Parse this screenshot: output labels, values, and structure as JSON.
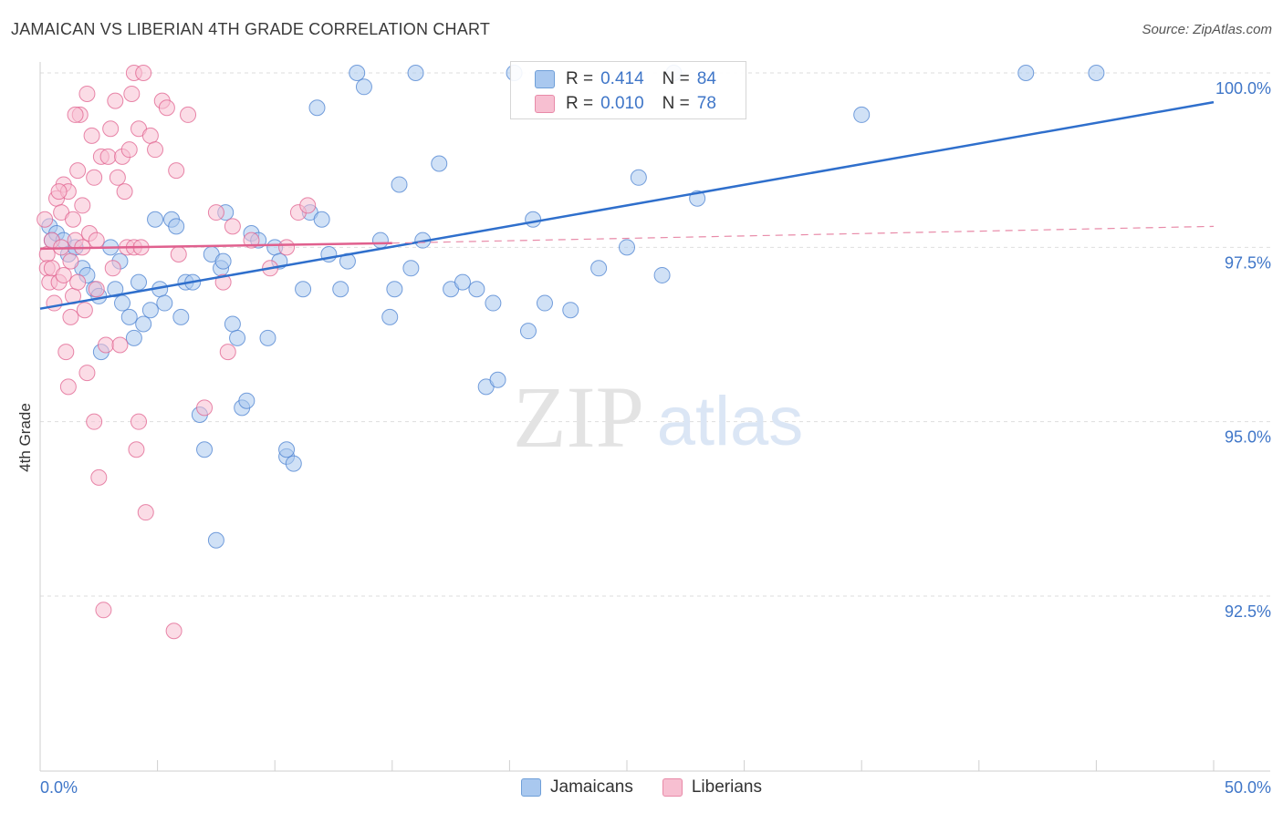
{
  "title": "JAMAICAN VS LIBERIAN 4TH GRADE CORRELATION CHART",
  "source": "Source: ZipAtlas.com",
  "watermark": {
    "zip": "ZIP",
    "atlas": "atlas"
  },
  "legend": {
    "rows": [
      {
        "r_label": "R =",
        "r_value": "0.414",
        "n_label": "N =",
        "n_value": "84",
        "color": "#a9c8ef",
        "border": "#6f9fd8"
      },
      {
        "r_label": "R =",
        "r_value": "0.010",
        "n_label": "N =",
        "n_value": "78",
        "color": "#f7bfd1",
        "border": "#e88aa8"
      }
    ]
  },
  "chart_data": {
    "type": "scatter",
    "title": "JAMAICAN VS LIBERIAN 4TH GRADE CORRELATION CHART",
    "xlabel": "",
    "ylabel": "4th Grade",
    "xlim": [
      0,
      50
    ],
    "ylim": [
      90.8,
      100.4
    ],
    "x_tick_labels": [
      "0.0%",
      "50.0%"
    ],
    "y_ticks": [
      92.5,
      95.0,
      97.5,
      100.0
    ],
    "y_tick_labels": [
      "92.5%",
      "95.0%",
      "97.5%",
      "100.0%"
    ],
    "grid": true,
    "legend_position": "top-center",
    "series": [
      {
        "name": "Jamaicans",
        "color": "#4a80d0",
        "fill": "#a9c8ef",
        "trend": {
          "x": [
            0,
            50
          ],
          "y": [
            96.62,
            99.58
          ]
        },
        "points": [
          [
            0.4,
            97.8
          ],
          [
            0.5,
            97.6
          ],
          [
            0.7,
            97.7
          ],
          [
            1.0,
            97.6
          ],
          [
            1.2,
            97.4
          ],
          [
            1.5,
            97.5
          ],
          [
            1.8,
            97.2
          ],
          [
            2.0,
            97.1
          ],
          [
            2.3,
            96.9
          ],
          [
            2.5,
            96.8
          ],
          [
            2.6,
            96.0
          ],
          [
            3.0,
            97.5
          ],
          [
            3.2,
            96.9
          ],
          [
            3.4,
            97.3
          ],
          [
            3.5,
            96.7
          ],
          [
            3.8,
            96.5
          ],
          [
            4.0,
            96.2
          ],
          [
            4.2,
            97.0
          ],
          [
            4.4,
            96.4
          ],
          [
            4.7,
            96.6
          ],
          [
            4.9,
            97.9
          ],
          [
            5.1,
            96.9
          ],
          [
            5.3,
            96.7
          ],
          [
            5.6,
            97.9
          ],
          [
            5.8,
            97.8
          ],
          [
            6.0,
            96.5
          ],
          [
            6.2,
            97.0
          ],
          [
            6.5,
            97.0
          ],
          [
            6.8,
            95.1
          ],
          [
            7.0,
            94.6
          ],
          [
            7.3,
            97.4
          ],
          [
            7.5,
            93.3
          ],
          [
            7.7,
            97.2
          ],
          [
            7.9,
            98.0
          ],
          [
            8.2,
            96.4
          ],
          [
            8.4,
            96.2
          ],
          [
            8.6,
            95.2
          ],
          [
            8.8,
            95.3
          ],
          [
            9.0,
            97.7
          ],
          [
            9.3,
            97.6
          ],
          [
            9.7,
            96.2
          ],
          [
            10.0,
            97.5
          ],
          [
            10.2,
            97.3
          ],
          [
            10.5,
            94.5
          ],
          [
            10.8,
            94.4
          ],
          [
            11.2,
            96.9
          ],
          [
            11.5,
            98.0
          ],
          [
            11.8,
            99.5
          ],
          [
            12.0,
            97.9
          ],
          [
            12.3,
            97.4
          ],
          [
            12.8,
            96.9
          ],
          [
            13.1,
            97.3
          ],
          [
            13.5,
            100.0
          ],
          [
            13.8,
            99.8
          ],
          [
            14.5,
            97.6
          ],
          [
            14.9,
            96.5
          ],
          [
            15.1,
            96.9
          ],
          [
            15.3,
            98.4
          ],
          [
            15.8,
            97.2
          ],
          [
            16.3,
            97.6
          ],
          [
            17.0,
            98.7
          ],
          [
            17.5,
            96.9
          ],
          [
            18.0,
            97.0
          ],
          [
            18.6,
            96.9
          ],
          [
            19.0,
            95.5
          ],
          [
            19.3,
            96.7
          ],
          [
            19.5,
            95.6
          ],
          [
            20.2,
            100.0
          ],
          [
            20.8,
            96.3
          ],
          [
            21.0,
            97.9
          ],
          [
            21.5,
            96.7
          ],
          [
            22.6,
            96.6
          ],
          [
            23.8,
            97.2
          ],
          [
            25.0,
            97.5
          ],
          [
            25.5,
            98.5
          ],
          [
            26.5,
            97.1
          ],
          [
            27.0,
            100.0
          ],
          [
            28.0,
            98.2
          ],
          [
            35.0,
            99.4
          ],
          [
            42.0,
            100.0
          ],
          [
            45.0,
            100.0
          ],
          [
            10.5,
            94.6
          ],
          [
            16.0,
            100.0
          ],
          [
            7.8,
            97.3
          ]
        ]
      },
      {
        "name": "Liberians",
        "color": "#e0608e",
        "fill": "#f7bfd1",
        "trend": {
          "x": [
            0,
            15
          ],
          "y": [
            97.48,
            97.56
          ]
        },
        "trend_ext": {
          "x": [
            15,
            50
          ],
          "y": [
            97.56,
            97.8
          ]
        },
        "points": [
          [
            0.2,
            97.9
          ],
          [
            0.3,
            97.4
          ],
          [
            0.3,
            97.2
          ],
          [
            0.4,
            97.0
          ],
          [
            0.5,
            97.6
          ],
          [
            0.5,
            97.2
          ],
          [
            0.6,
            96.7
          ],
          [
            0.7,
            98.2
          ],
          [
            0.8,
            97.0
          ],
          [
            0.9,
            98.0
          ],
          [
            0.9,
            97.5
          ],
          [
            1.0,
            98.4
          ],
          [
            1.0,
            97.1
          ],
          [
            1.1,
            96.0
          ],
          [
            1.2,
            95.5
          ],
          [
            1.2,
            98.3
          ],
          [
            1.3,
            97.3
          ],
          [
            1.3,
            96.5
          ],
          [
            1.4,
            97.9
          ],
          [
            1.4,
            96.8
          ],
          [
            1.5,
            97.6
          ],
          [
            1.6,
            98.6
          ],
          [
            1.6,
            97.0
          ],
          [
            1.7,
            99.4
          ],
          [
            1.8,
            98.1
          ],
          [
            1.8,
            97.5
          ],
          [
            1.9,
            96.6
          ],
          [
            2.0,
            99.7
          ],
          [
            2.0,
            95.7
          ],
          [
            2.1,
            97.7
          ],
          [
            2.2,
            99.1
          ],
          [
            2.3,
            98.5
          ],
          [
            2.4,
            97.6
          ],
          [
            2.4,
            96.9
          ],
          [
            2.5,
            94.2
          ],
          [
            2.6,
            98.8
          ],
          [
            2.7,
            92.3
          ],
          [
            2.8,
            96.1
          ],
          [
            2.9,
            98.8
          ],
          [
            3.0,
            99.2
          ],
          [
            3.1,
            97.2
          ],
          [
            3.2,
            99.6
          ],
          [
            3.3,
            98.5
          ],
          [
            3.4,
            96.1
          ],
          [
            3.5,
            98.8
          ],
          [
            3.6,
            98.3
          ],
          [
            3.7,
            97.5
          ],
          [
            3.8,
            98.9
          ],
          [
            3.9,
            99.7
          ],
          [
            4.0,
            97.5
          ],
          [
            4.0,
            100.0
          ],
          [
            4.1,
            94.6
          ],
          [
            4.2,
            95.0
          ],
          [
            4.2,
            99.2
          ],
          [
            4.3,
            97.5
          ],
          [
            4.4,
            100.0
          ],
          [
            4.5,
            93.7
          ],
          [
            4.7,
            99.1
          ],
          [
            4.9,
            98.9
          ],
          [
            5.2,
            99.6
          ],
          [
            5.4,
            99.5
          ],
          [
            5.7,
            92.0
          ],
          [
            5.8,
            98.6
          ],
          [
            5.9,
            97.4
          ],
          [
            6.3,
            99.4
          ],
          [
            7.0,
            95.2
          ],
          [
            7.5,
            98.0
          ],
          [
            7.8,
            97.0
          ],
          [
            8.0,
            96.0
          ],
          [
            8.2,
            97.8
          ],
          [
            9.0,
            97.6
          ],
          [
            9.8,
            97.2
          ],
          [
            10.5,
            97.5
          ],
          [
            11.0,
            98.0
          ],
          [
            11.4,
            98.1
          ],
          [
            2.3,
            95.0
          ],
          [
            1.5,
            99.4
          ],
          [
            0.8,
            98.3
          ]
        ]
      }
    ]
  }
}
